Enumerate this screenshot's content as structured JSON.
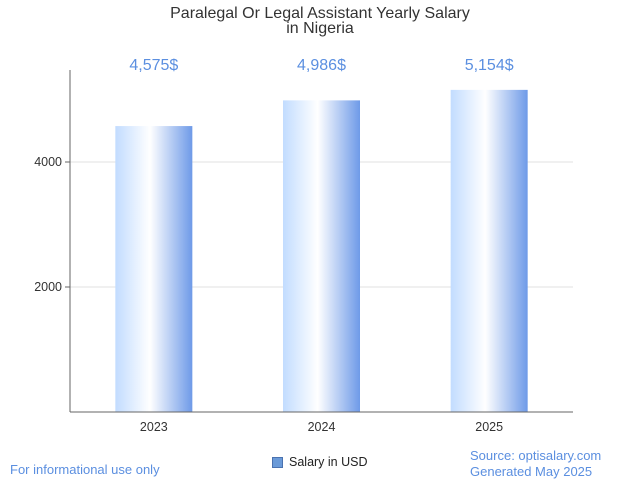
{
  "chart_data": {
    "type": "bar",
    "title_lines": [
      "Paralegal Or Legal Assistant Yearly Salary",
      "in Nigeria"
    ],
    "categories": [
      "2023",
      "2024",
      "2025"
    ],
    "values": [
      4575,
      4986,
      5154
    ],
    "value_labels": [
      "4,575$",
      "4,986$",
      "5,154$"
    ],
    "series": [
      {
        "name": "Salary in USD",
        "values": [
          4575,
          4986,
          5154
        ]
      }
    ],
    "yticks": [
      2000,
      4000
    ],
    "ylim": [
      0,
      5400
    ],
    "grid": true,
    "legend": "bottom-center"
  },
  "footer": {
    "note": "For informational use only",
    "source": "Source: optisalary.com",
    "generated": "Generated May 2025"
  },
  "colors": {
    "bar_gradient": [
      "#c2dcff",
      "#ffffff",
      "#6e9ae8"
    ],
    "value_label": "#5b8fe0",
    "gridline": "#e0e0e0"
  }
}
